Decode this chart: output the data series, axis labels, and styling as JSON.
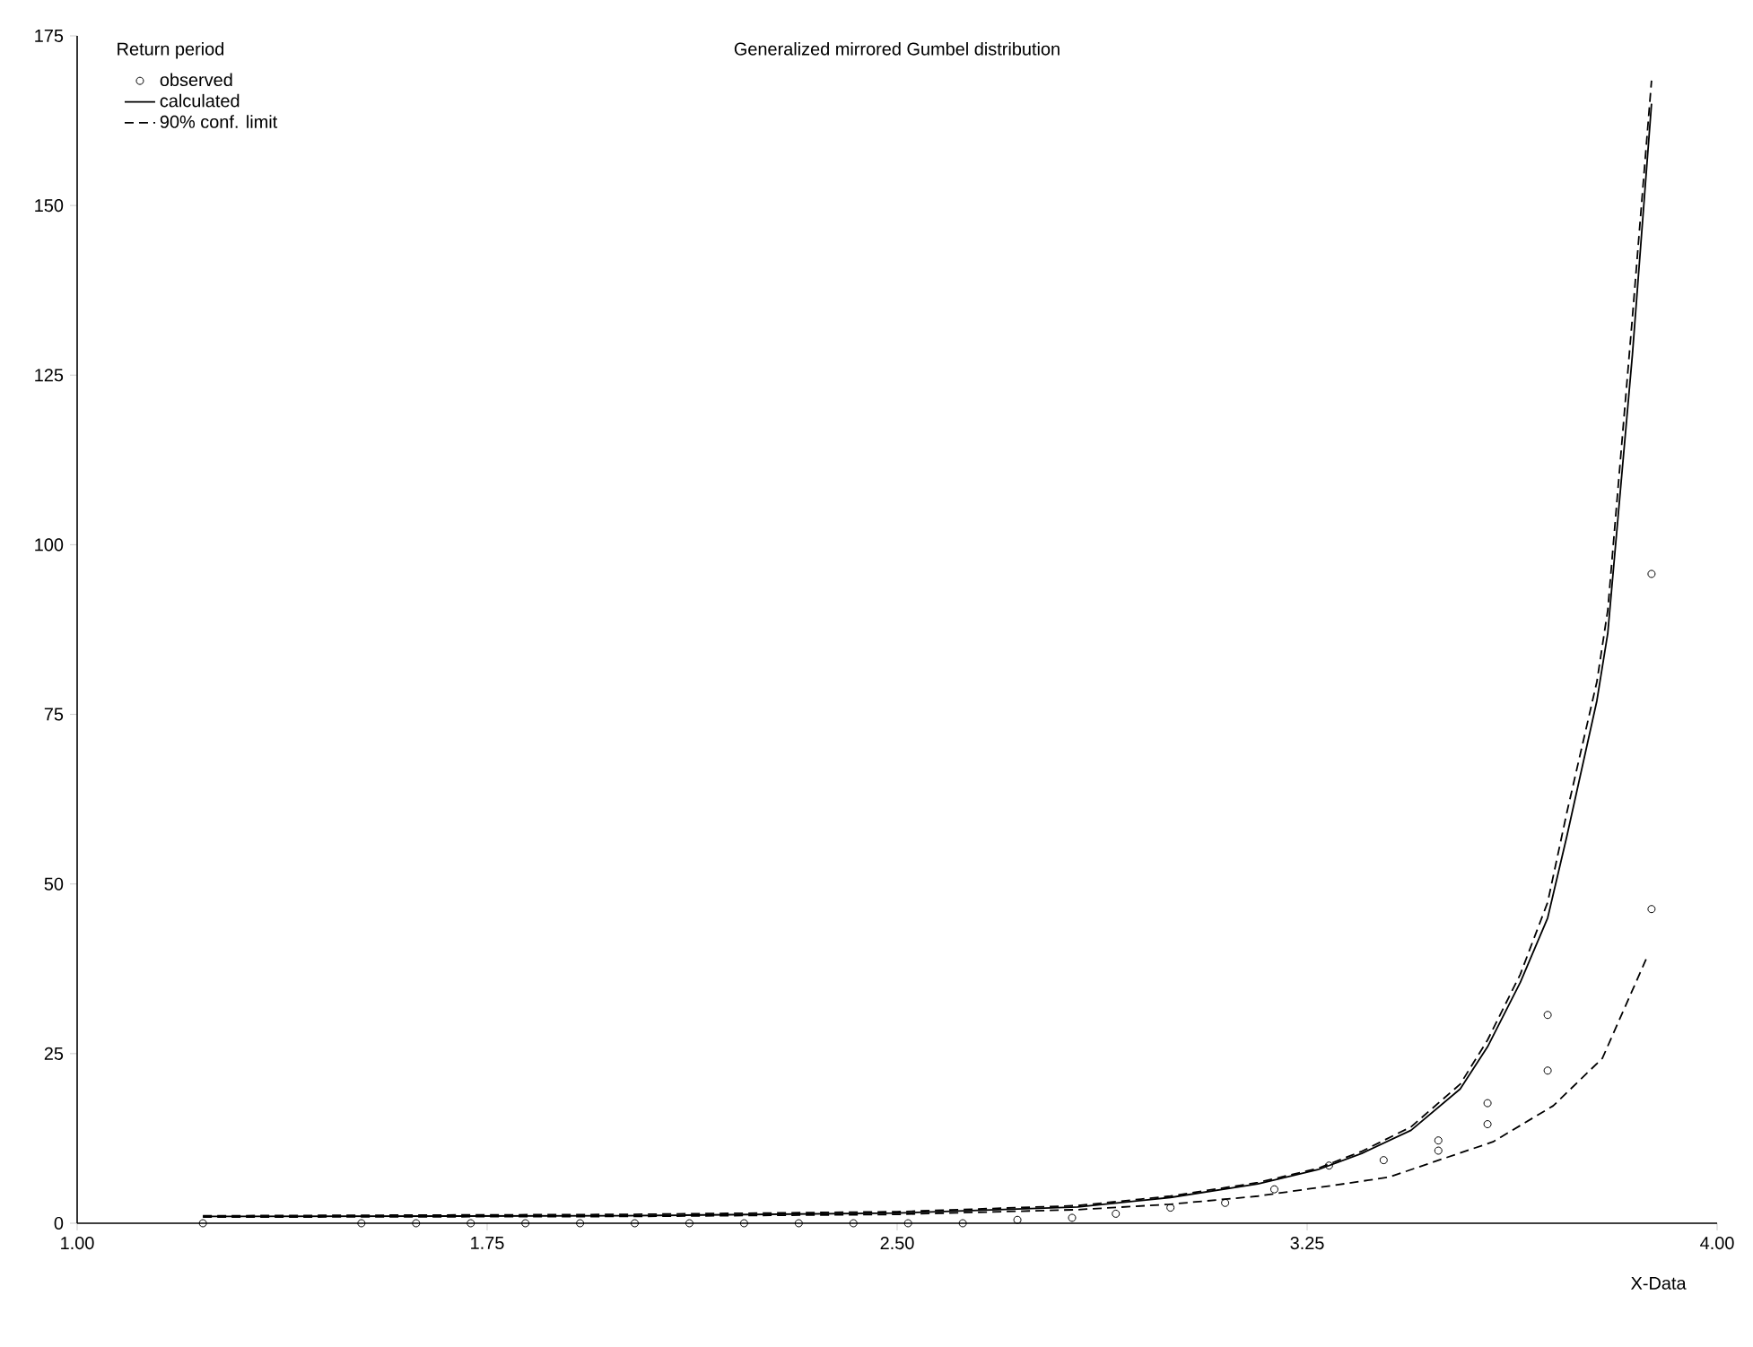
{
  "chart_data": {
    "type": "line",
    "title": "Generalized mirrored Gumbel distribution",
    "xlabel": "X-Data",
    "legend_title": "Return period",
    "legend": "top left",
    "grid": false,
    "xlim": [
      1,
      4
    ],
    "ylim": [
      0,
      175
    ],
    "xticks": [
      {
        "value": 1,
        "label": "1.00"
      },
      {
        "value": 1.75,
        "label": "1.75"
      },
      {
        "value": 2.5,
        "label": "2.50"
      },
      {
        "value": 3.25,
        "label": "3.25"
      },
      {
        "value": 4,
        "label": "4.00"
      }
    ],
    "yticks": [
      0,
      25,
      50,
      75,
      100,
      125,
      150,
      175
    ],
    "series": [
      {
        "name": "observed",
        "type": "scatter",
        "marker": "circle",
        "color": "#000000",
        "x": [
          1.23,
          1.52,
          1.62,
          1.72,
          1.82,
          1.92,
          2.02,
          2.12,
          2.22,
          2.32,
          2.42,
          2.52,
          2.62,
          2.72,
          2.82,
          2.9,
          3.0,
          3.1,
          3.19,
          3.29,
          3.39,
          3.49,
          3.49,
          3.58,
          3.58,
          3.69,
          3.69,
          3.88,
          3.88
        ],
        "values": [
          0,
          0,
          0,
          0,
          0,
          0,
          0,
          0,
          0,
          0,
          0,
          0,
          0,
          0.5,
          0.8,
          1.4,
          2.3,
          3.0,
          5,
          8.5,
          9.3,
          10.7,
          12.2,
          14.6,
          17.7,
          22.5,
          30.7,
          46.3,
          95.7
        ]
      },
      {
        "name": "calculated",
        "line_style": "solid",
        "color": "#000000",
        "x": [
          1.23,
          2.0,
          2.5,
          2.83,
          3.0,
          3.16,
          3.27,
          3.35,
          3.44,
          3.53,
          3.58,
          3.64,
          3.69,
          3.725,
          3.78,
          3.8,
          3.845,
          3.88
        ],
        "values": [
          1.0,
          1.1,
          1.5,
          2.4,
          3.8,
          5.8,
          7.9,
          10.3,
          13.7,
          19.8,
          26,
          35.5,
          45,
          57,
          77,
          87,
          128,
          165
        ]
      },
      {
        "name": "90% conf. limit",
        "line_style": "dashed",
        "color": "#000000",
        "x": [
          1.23,
          2.0,
          2.5,
          2.83,
          3.0,
          3.16,
          3.27,
          3.35,
          3.44,
          3.53,
          3.58,
          3.64,
          3.69,
          3.725,
          3.78,
          3.8,
          3.845,
          3.88
        ],
        "values": [
          1.1,
          1.3,
          1.7,
          2.6,
          4.0,
          6.0,
          8.1,
          10.6,
          14.2,
          20.5,
          27,
          36.7,
          47.3,
          60.5,
          79.8,
          90.4,
          133.5,
          168.4
        ]
      },
      {
        "line_style": "dashed",
        "color": "#000000",
        "x": [
          1.23,
          2.0,
          2.5,
          2.83,
          3.0,
          3.16,
          3.3,
          3.4,
          3.48,
          3.59,
          3.7,
          3.79,
          3.87
        ],
        "values": [
          0.9,
          1.0,
          1.3,
          2.0,
          2.8,
          4.0,
          5.6,
          6.8,
          9.0,
          12,
          17.3,
          24.3,
          38.9
        ]
      }
    ]
  }
}
